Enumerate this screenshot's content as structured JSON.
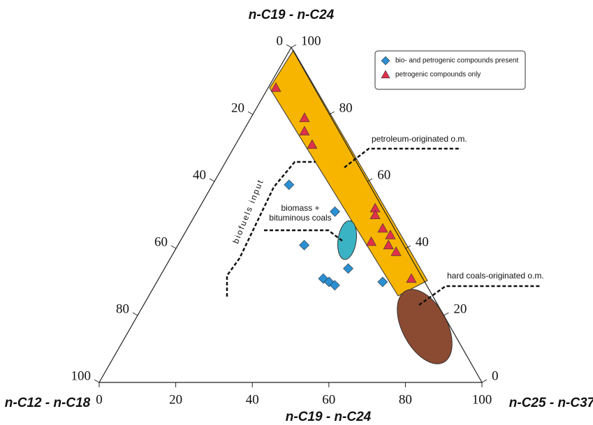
{
  "chart_data": {
    "type": "ternary",
    "top_axis_label": "n-C19 - n-C24",
    "left_axis_label": "n-C12 - n-C18",
    "right_axis_label": "n-C25 - n-C37",
    "bottom_axis_label": "n-C19 - n-C24",
    "left_ticks": [
      0,
      20,
      40,
      60,
      80,
      100
    ],
    "right_ticks": [
      0,
      20,
      40,
      60,
      80,
      100
    ],
    "bottom_ticks": [
      0,
      20,
      40,
      60,
      80,
      100
    ],
    "series": [
      {
        "name": "bio- and petrogenic compounds present",
        "color": "#2b8fd2",
        "marker": "diamond",
        "top": [
          59,
          51,
          41,
          34,
          31,
          30,
          29,
          30
        ],
        "left": [
          21,
          13,
          26,
          18,
          26,
          25,
          24,
          11
        ],
        "right": [
          20,
          36,
          33,
          48,
          43,
          45,
          47,
          59
        ]
      },
      {
        "name": "petrogenic compounds only",
        "color": "#e0304a",
        "marker": "triangle",
        "top": [
          88,
          79,
          75,
          71,
          52,
          50,
          46,
          44,
          42,
          41,
          39,
          31
        ],
        "left": [
          10,
          7,
          9,
          9,
          2,
          3,
          3,
          2,
          8,
          4,
          3,
          3
        ],
        "right": [
          2,
          14,
          16,
          20,
          46,
          47,
          51,
          54,
          50,
          55,
          58,
          66
        ]
      }
    ],
    "annotations": [
      "petroleum-originated o.m.",
      "hard coals-originated o.m.",
      "biomass +",
      "bituminous coals",
      "biofuels  input"
    ]
  }
}
